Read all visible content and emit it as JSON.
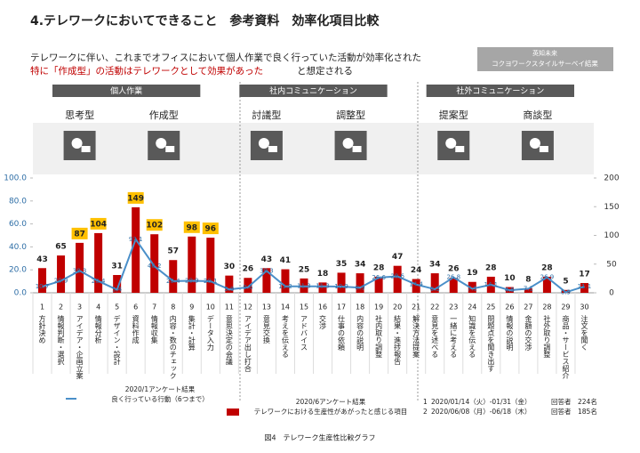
{
  "header": {
    "title": "4.テレワークにおいてできること　参考資料　効率化項目比較",
    "subtitle_line1": "テレワークに伴い、これまでオフィスにおいて個人作業で良く行っていた活動が効率化された",
    "subtitle_line2_red": "特に「作成型」の活動はテレワークとして効果があった",
    "subtitle_line2_rest": "と想定される",
    "source": [
      "英知未来",
      "コクヨワークスタイルサーベイ結果"
    ]
  },
  "groups": [
    {
      "label": "個人作業",
      "types": [
        "思考型",
        "作成型"
      ]
    },
    {
      "label": "社内コミュニケーション",
      "types": [
        "討議型",
        "調整型"
      ]
    },
    {
      "label": "社外コミュニケーション",
      "types": [
        "提案型",
        "商談型"
      ]
    }
  ],
  "chart_data": {
    "type": "bar_line",
    "numbers": [
      1,
      2,
      3,
      4,
      5,
      6,
      7,
      8,
      9,
      10,
      11,
      12,
      13,
      14,
      15,
      16,
      17,
      18,
      19,
      20,
      21,
      22,
      23,
      24,
      25,
      26,
      27,
      28,
      29,
      30
    ],
    "categories": [
      "方針決め",
      "情報判断・選択",
      "アイデア・企画立案",
      "情報分析",
      "デザイン・設計",
      "資料作成",
      "情報収集",
      "内容・数のチェック",
      "集計・計算",
      "データ入力",
      "意思決定の会議",
      "アイデア出し打合",
      "意見交換",
      "考えを伝える",
      "アドバイス",
      "交渉",
      "仕事の依頼",
      "内容の説明",
      "社内取り調整",
      "結果・進捗報告",
      "解決方法提案",
      "意見を述べる",
      "一緒に考える",
      "知識を伝える",
      "問題点を聞き出す",
      "情報の説明",
      "金額の交渉",
      "社外取り調整",
      "商品・サービス紹介",
      "注文を聞く"
    ],
    "series": [
      {
        "name": "2020/1アンケート結果",
        "description": "良く行っている行動（6つまで）",
        "type": "line",
        "axis": "y2",
        "color": "#4a8fc9",
        "values": [
          10.7,
          20.9,
          38.3,
          20.4,
          5.4,
          93.1,
          46.2,
          20.4,
          20.9,
          20.1,
          5.9,
          9.6,
          38.3,
          11.2,
          11.3,
          11.3,
          10.9,
          8.9,
          26.6,
          28.6,
          14.4,
          6.3,
          26.8,
          7.1,
          14.1,
          4.5,
          7.1,
          26.9,
          0.9,
          11.1
        ]
      },
      {
        "name": "2020/6アンケート結果",
        "description": "テレワークにおける生産性があがったと感じる項目",
        "type": "bar",
        "axis": "y2",
        "color": "#c00000",
        "values": [
          43,
          65,
          87,
          104,
          31,
          149,
          102,
          57,
          98,
          96,
          30,
          26,
          43,
          41,
          25,
          18,
          35,
          34,
          28,
          47,
          24,
          34,
          26,
          19,
          28,
          10,
          8,
          28,
          5,
          17
        ],
        "highlight": [
          2,
          3,
          5,
          6,
          8,
          9
        ],
        "highlight_color": "#ffc000"
      }
    ],
    "ylim": [
      0,
      100
    ],
    "yticks": [
      {
        "value": 0,
        "label": "0.0"
      },
      {
        "value": 20,
        "label": "20.0"
      },
      {
        "value": 40,
        "label": "40.0"
      },
      {
        "value": 60,
        "label": "60.0"
      },
      {
        "value": 80,
        "label": "80.0"
      },
      {
        "value": 100,
        "label": "100.0"
      }
    ],
    "y2lim": [
      0,
      200
    ],
    "y2ticks": [
      0,
      50,
      100,
      150,
      200
    ],
    "surveys": [
      {
        "no": "1",
        "period": "2020/01/14（火）-01/31（金）",
        "respondents": "回答者　224名"
      },
      {
        "no": "2",
        "period": "2020/06/08（月）-06/18（木）",
        "respondents": "回答者　185名"
      }
    ],
    "caption": "図4　テレワーク生産性比較グラフ"
  }
}
